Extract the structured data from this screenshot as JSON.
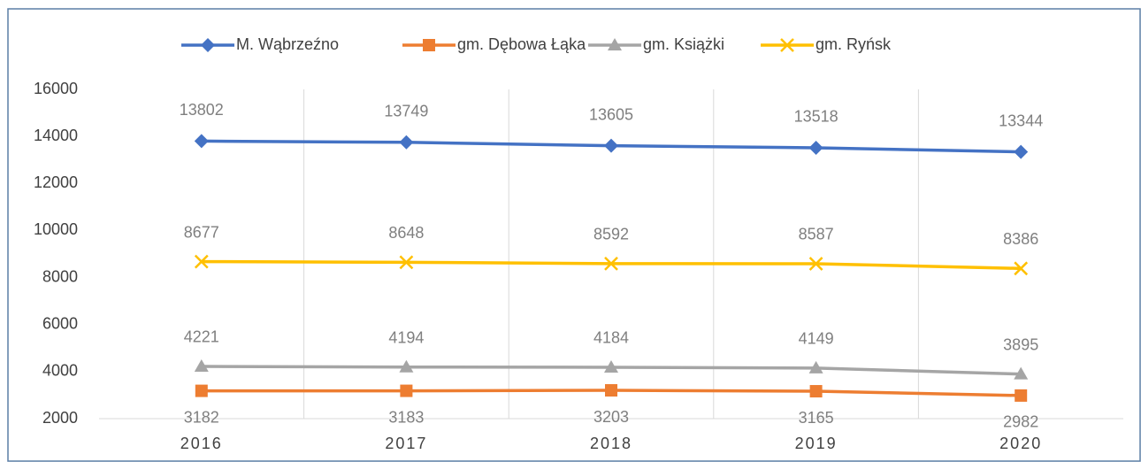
{
  "chart_data": {
    "type": "line",
    "categories": [
      "2016",
      "2017",
      "2018",
      "2019",
      "2020"
    ],
    "series": [
      {
        "name": "M. Wąbrzeźno",
        "color": "#4472c4",
        "values": [
          13802,
          13749,
          13605,
          13518,
          13344
        ]
      },
      {
        "name": "gm. Dębowa Łąka",
        "color": "#ed7d31",
        "values": [
          3182,
          3183,
          3203,
          3165,
          2982
        ]
      },
      {
        "name": "gm. Książki",
        "color": "#a5a5a5",
        "values": [
          4221,
          4194,
          4184,
          4149,
          3895
        ]
      },
      {
        "name": "gm. Ryńsk",
        "color": "#ffc000",
        "values": [
          8677,
          8648,
          8592,
          8587,
          8386
        ]
      }
    ],
    "ylim": [
      2000,
      16000
    ],
    "yticks": [
      2000,
      4000,
      6000,
      8000,
      10000,
      12000,
      14000,
      16000
    ],
    "legend": "top",
    "grid": false
  }
}
